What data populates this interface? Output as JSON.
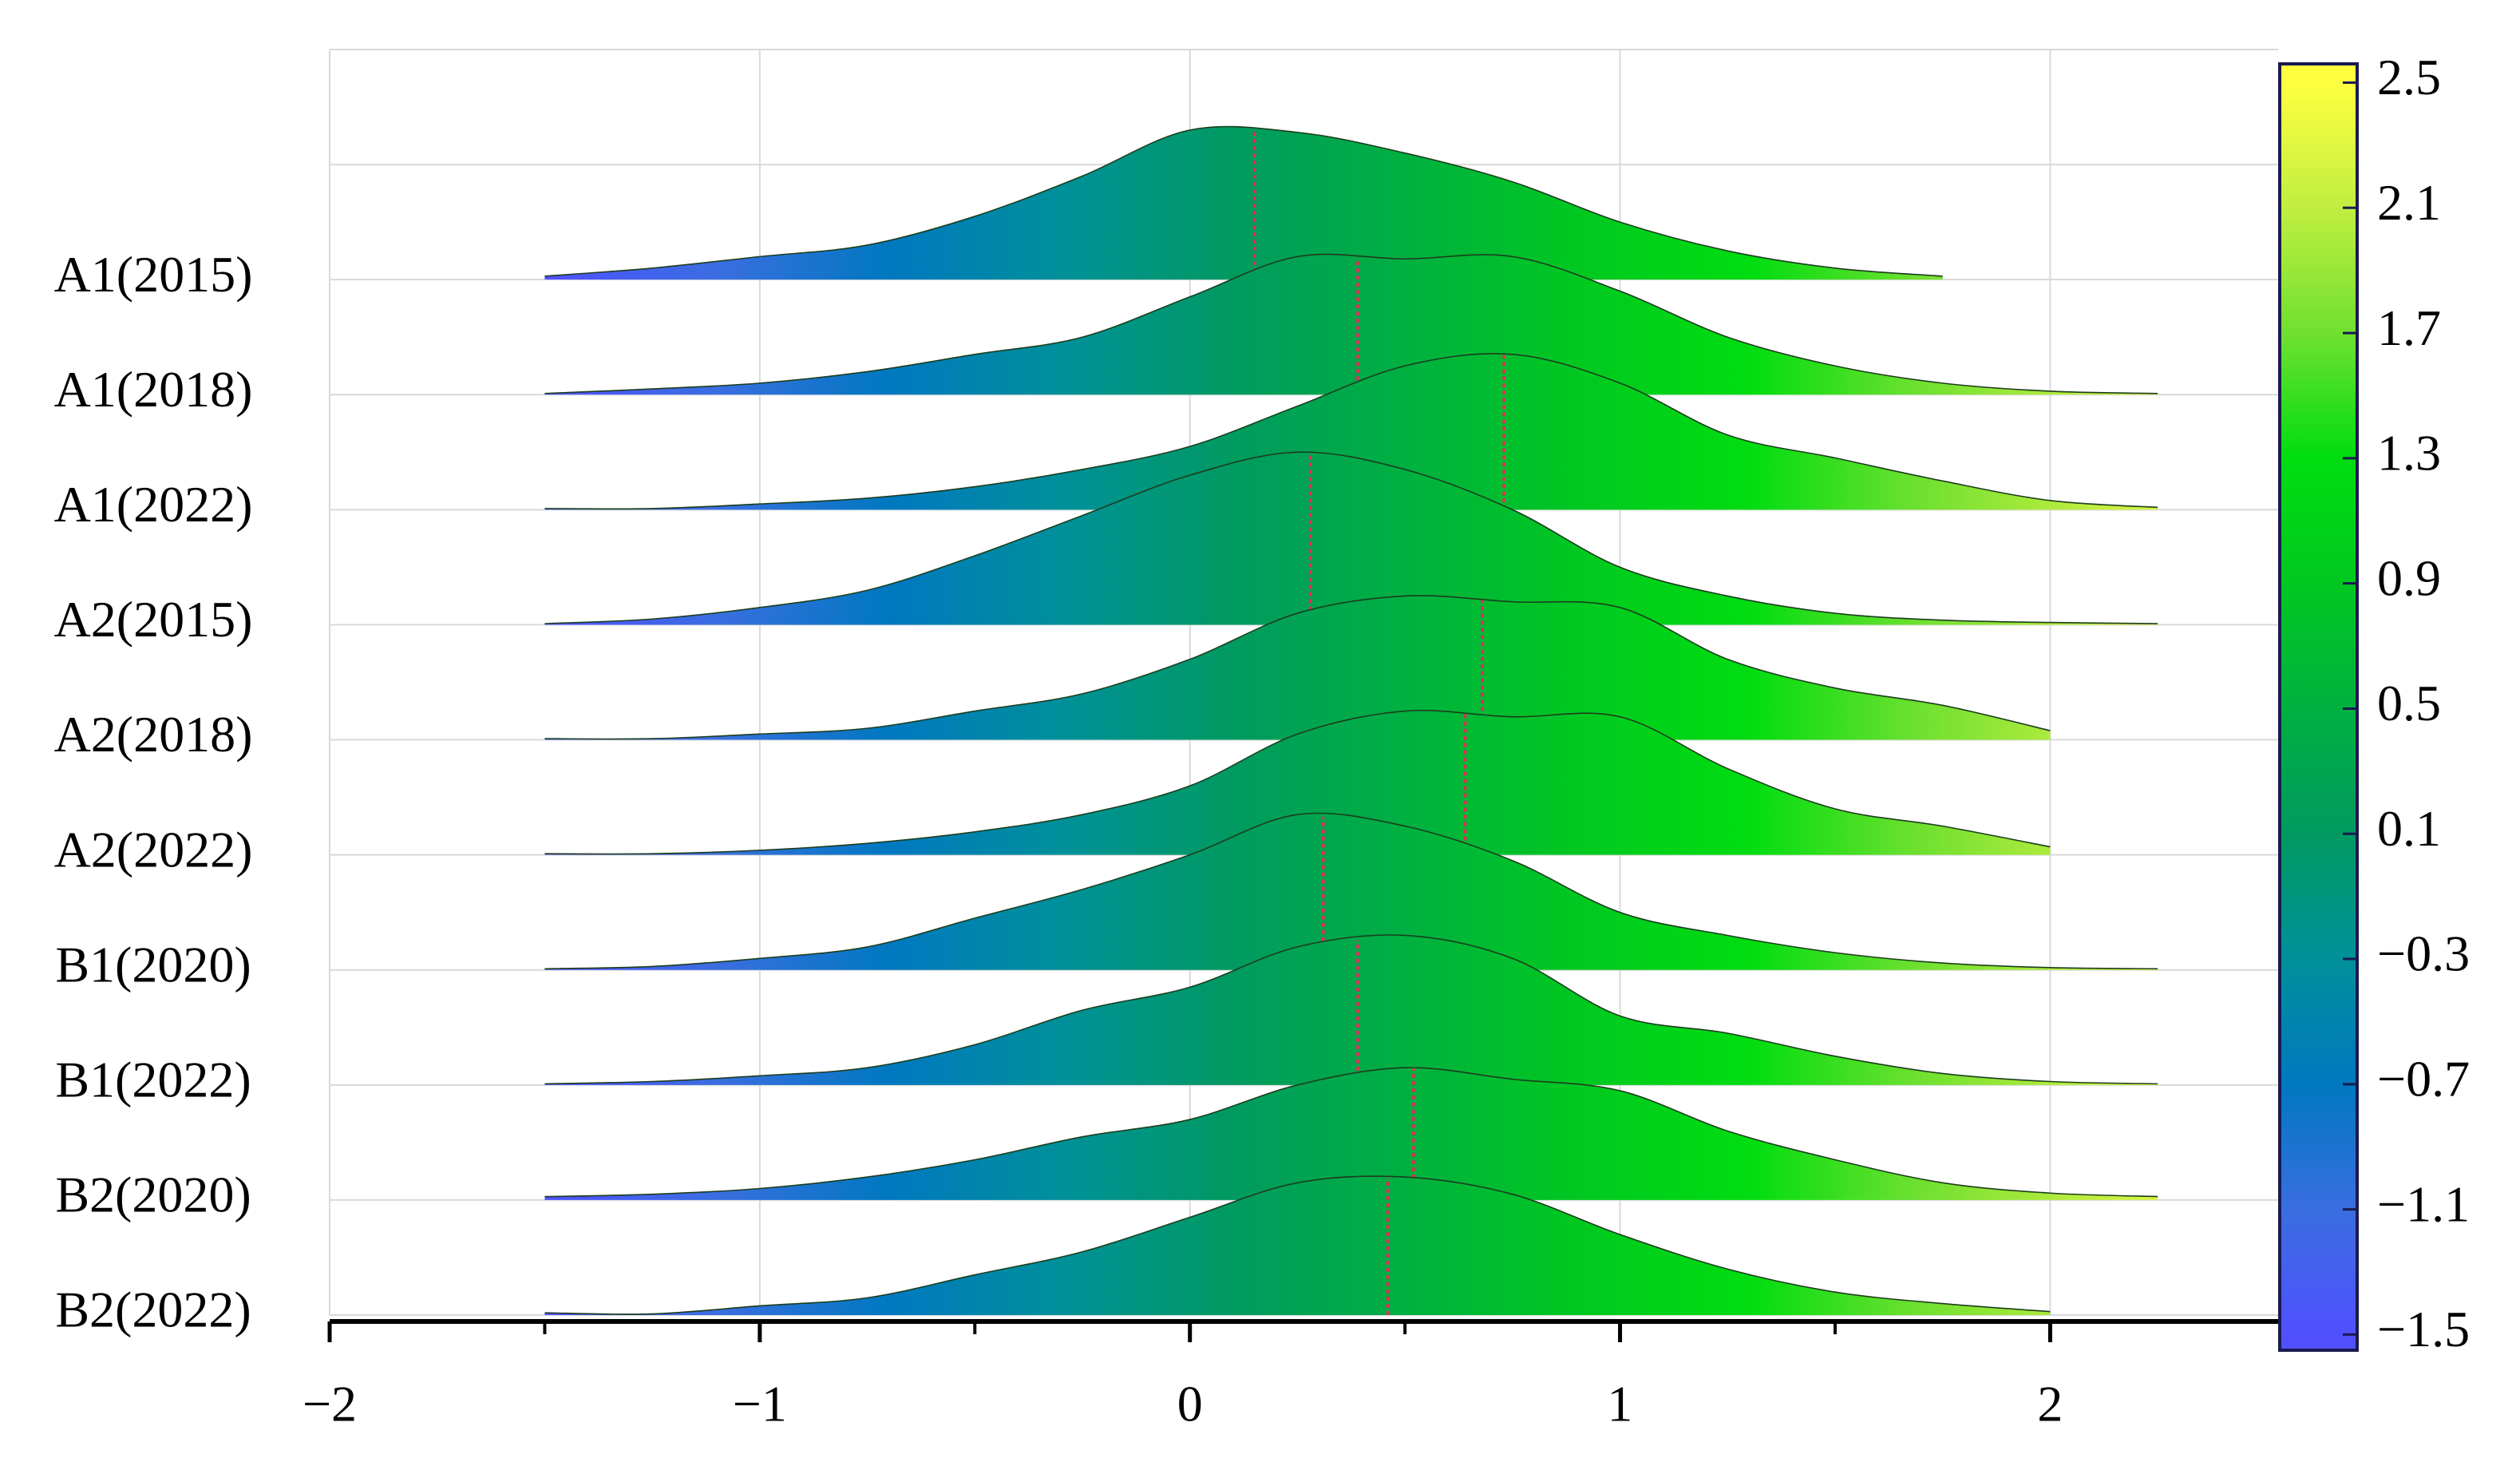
{
  "chart_data": {
    "type": "ridgeline",
    "x": [
      -1.75,
      -1.5,
      -1.25,
      -1,
      -0.75,
      -0.5,
      -0.25,
      0,
      0.25,
      0.5,
      0.75,
      1,
      1.25,
      1.5,
      1.75,
      2,
      2.25,
      2.5
    ],
    "series": [
      {
        "name": "A1(2015)",
        "median": 0.15,
        "values": [
          null,
          0.03,
          0.1,
          0.2,
          0.3,
          0.55,
          0.9,
          1.3,
          1.28,
          1.1,
          0.85,
          0.5,
          0.25,
          0.1,
          0.03,
          null,
          null,
          null
        ]
      },
      {
        "name": "A1(2018)",
        "median": 0.39,
        "values": [
          null,
          0.01,
          0.05,
          0.1,
          0.2,
          0.35,
          0.5,
          0.85,
          1.2,
          1.18,
          1.2,
          0.9,
          0.5,
          0.25,
          0.1,
          0.03,
          0.01,
          null
        ]
      },
      {
        "name": "A1(2022)",
        "median": 0.73,
        "values": [
          null,
          0.01,
          0.01,
          0.05,
          0.1,
          0.2,
          0.35,
          0.55,
          0.9,
          1.25,
          1.35,
          1.1,
          0.65,
          0.45,
          0.25,
          0.08,
          0.02,
          null
        ]
      },
      {
        "name": "A2(2015)",
        "median": 0.28,
        "values": [
          null,
          0.01,
          0.05,
          0.15,
          0.3,
          0.6,
          0.95,
          1.3,
          1.5,
          1.35,
          1.0,
          0.5,
          0.25,
          0.1,
          0.04,
          0.02,
          0.01,
          null
        ]
      },
      {
        "name": "A2(2018)",
        "median": 0.68,
        "values": [
          null,
          0.01,
          0.01,
          0.05,
          0.1,
          0.25,
          0.4,
          0.7,
          1.1,
          1.25,
          1.2,
          1.15,
          0.7,
          0.45,
          0.3,
          0.08,
          null,
          null
        ]
      },
      {
        "name": "A2(2022)",
        "median": 0.64,
        "values": [
          null,
          0.01,
          0.01,
          0.04,
          0.1,
          0.2,
          0.35,
          0.6,
          1.05,
          1.25,
          1.2,
          1.2,
          0.75,
          0.4,
          0.25,
          0.07,
          null,
          null
        ]
      },
      {
        "name": "B1(2020)",
        "median": 0.31,
        "values": [
          null,
          0.01,
          0.03,
          0.1,
          0.2,
          0.45,
          0.7,
          1.0,
          1.35,
          1.25,
          0.95,
          0.5,
          0.3,
          0.15,
          0.06,
          0.02,
          0.01,
          null
        ]
      },
      {
        "name": "B1(2022)",
        "median": 0.39,
        "values": [
          null,
          0.01,
          0.03,
          0.08,
          0.15,
          0.35,
          0.65,
          0.85,
          1.2,
          1.3,
          1.1,
          0.6,
          0.45,
          0.25,
          0.1,
          0.03,
          0.01,
          null
        ]
      },
      {
        "name": "B2(2020)",
        "median": 0.52,
        "values": [
          null,
          0.03,
          0.05,
          0.1,
          0.2,
          0.35,
          0.55,
          0.7,
          1.0,
          1.15,
          1.05,
          0.95,
          0.6,
          0.35,
          0.15,
          0.06,
          0.03,
          null
        ]
      },
      {
        "name": "B2(2022)",
        "median": 0.46,
        "values": [
          null,
          0.02,
          0.01,
          0.08,
          0.15,
          0.35,
          0.55,
          0.85,
          1.15,
          1.2,
          1.05,
          0.7,
          0.4,
          0.2,
          0.1,
          0.03,
          null,
          null
        ]
      }
    ],
    "xlim": [
      -2,
      2.53
    ],
    "xticks": [
      {
        "value": -2,
        "label": "−2"
      },
      {
        "value": -1,
        "label": "−1"
      },
      0,
      1,
      2
    ],
    "xminorticks": [
      -1.5,
      -0.5,
      0.5,
      1.5
    ],
    "ylim": [
      0,
      11
    ],
    "grid": true,
    "outline_color": "#1d3d1d",
    "median_color": "#e8285a",
    "colorbar": {
      "lim": [
        -1.55,
        2.56
      ],
      "ticks": [
        {
          "value": -1.5,
          "label": "−1.5"
        },
        {
          "value": -1.1,
          "label": "−1.1"
        },
        {
          "value": -0.7,
          "label": "−0.7"
        },
        {
          "value": -0.3,
          "label": "−0.3"
        },
        0.1,
        0.5,
        0.9,
        1.3,
        1.7,
        2.1,
        2.5
      ],
      "colors": [
        "#5050ff",
        "#3a6ee0",
        "#0078c0",
        "#00909a",
        "#009a60",
        "#00b040",
        "#00c820",
        "#00dd10",
        "#70e030",
        "#c0ee40",
        "#ffff40"
      ]
    }
  }
}
